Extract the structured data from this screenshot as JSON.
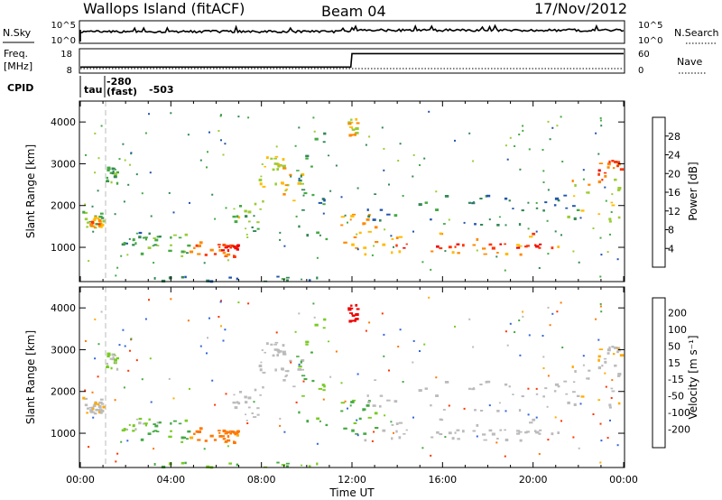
{
  "header": {
    "station": "Wallops Island (fitACF)",
    "beam": "Beam 04",
    "date": "17/Nov/2012"
  },
  "top_panels": {
    "nsky_label": "N.Sky",
    "nsky_ticks": [
      "10^5",
      "10^0"
    ],
    "nsearch_label": "N.Search",
    "nsearch_ticks": [
      "10^5",
      "10^0"
    ],
    "freq_label_1": "Freq.",
    "freq_label_2": "[MHz]",
    "freq_ticks": [
      "18",
      "8"
    ],
    "nave_label": "Nave",
    "nave_ticks": [
      "60",
      "0"
    ],
    "cpid_label": "CPID",
    "cpid_tau": "tau",
    "cpid_mode_1": "-280",
    "cpid_mode_2": "(fast)",
    "cpid_mode_3": "-503"
  },
  "colors": {
    "power_scale": [
      "#0022ee",
      "#2255aa",
      "#338855",
      "#44aa44",
      "#99cc33",
      "#ffbb00",
      "#ff8800",
      "#ff3300",
      "#ee0000"
    ],
    "velocity_scale": [
      "#2244cc",
      "#3366dd",
      "#44aa44",
      "#77cc22",
      "#bbbbbb",
      "#ffaa00",
      "#ff7700",
      "#ff3300",
      "#ee0000"
    ]
  },
  "chart_data": {
    "type": "heatmap",
    "xlabel": "Time UT",
    "x_ticks": [
      "00:00",
      "04:00",
      "08:00",
      "12:00",
      "16:00",
      "20:00",
      "00:00"
    ],
    "x_range_hours": [
      0,
      24
    ],
    "panels": [
      {
        "name": "power",
        "ylabel": "Slant Range [km]",
        "y_ticks": [
          1000,
          2000,
          3000,
          4000
        ],
        "y_range": [
          180,
          4500
        ],
        "colorbar_label": "Power [dB]",
        "colorbar_ticks": [
          "4",
          "8",
          "12",
          "16",
          "20",
          "24",
          "28"
        ],
        "colorbar_range": [
          0,
          32
        ]
      },
      {
        "name": "velocity",
        "ylabel": "Slant Range [km]",
        "y_ticks": [
          1000,
          2000,
          3000,
          4000
        ],
        "y_range": [
          180,
          4500
        ],
        "colorbar_label": "Velocity [m s⁻¹]",
        "colorbar_ticks": [
          "200",
          "100",
          "50",
          "15",
          "-15",
          "-50",
          "-100",
          "-200"
        ]
      }
    ],
    "frequency_mhz": [
      {
        "x": 0.0,
        "y": 10.5
      },
      {
        "x": 11.95,
        "y": 10.5
      },
      {
        "x": 12.0,
        "y": 16.0
      },
      {
        "x": 24.0,
        "y": 16.0
      }
    ],
    "scatter_regions": [
      {
        "t0": 0.0,
        "t1": 1.0,
        "r0": 1450,
        "r1": 1900,
        "p": 14,
        "v": -10
      },
      {
        "t0": 0.4,
        "t1": 1.0,
        "r0": 1500,
        "r1": 1750,
        "p": 22,
        "v": -10
      },
      {
        "t0": 1.0,
        "t1": 1.6,
        "r0": 2550,
        "r1": 2950,
        "p": 12,
        "v": 10
      },
      {
        "t0": 1.8,
        "t1": 3.4,
        "r0": 1050,
        "r1": 1400,
        "p": 10,
        "v": 20
      },
      {
        "t0": 2.5,
        "t1": 4.8,
        "r0": 800,
        "r1": 1350,
        "p": 14,
        "v": 40
      },
      {
        "t0": 4.8,
        "t1": 6.9,
        "r0": 800,
        "r1": 1200,
        "p": 24,
        "v": -45
      },
      {
        "t0": 6.0,
        "t1": 7.0,
        "r0": 950,
        "r1": 1100,
        "p": 29,
        "v": -45
      },
      {
        "t0": 6.6,
        "t1": 8.0,
        "r0": 1300,
        "r1": 2100,
        "p": 14,
        "v": 0
      },
      {
        "t0": 7.8,
        "t1": 9.8,
        "r0": 2100,
        "r1": 2800,
        "p": 19,
        "v": 0
      },
      {
        "t0": 8.0,
        "t1": 9.0,
        "r0": 2800,
        "r1": 3200,
        "p": 18,
        "v": 0
      },
      {
        "t0": 9.5,
        "t1": 11.0,
        "r0": 1200,
        "r1": 3900,
        "p": 10,
        "v": 30
      },
      {
        "t0": 11.8,
        "t1": 12.2,
        "r0": 3700,
        "r1": 4100,
        "p": 20,
        "v": -250
      },
      {
        "t0": 11.3,
        "t1": 13.0,
        "r0": 1000,
        "r1": 1900,
        "p": 22,
        "v": 40
      },
      {
        "t0": 12.5,
        "t1": 21.5,
        "r0": 850,
        "r1": 1400,
        "p": 22,
        "v": 0
      },
      {
        "t0": 13.5,
        "t1": 20.5,
        "r0": 1000,
        "r1": 1100,
        "p": 29,
        "v": 0
      },
      {
        "t0": 12.5,
        "t1": 22.0,
        "r0": 1550,
        "r1": 2300,
        "p": 8,
        "v": 0
      },
      {
        "t0": 21.5,
        "t1": 24.0,
        "r0": 1600,
        "r1": 2800,
        "p": 18,
        "v": -10
      },
      {
        "t0": 22.8,
        "t1": 24.0,
        "r0": 2600,
        "r1": 3100,
        "p": 26,
        "v": -10
      },
      {
        "t0": 3.0,
        "t1": 10.8,
        "r0": 200,
        "r1": 320,
        "p": 8,
        "v": 30
      }
    ]
  }
}
